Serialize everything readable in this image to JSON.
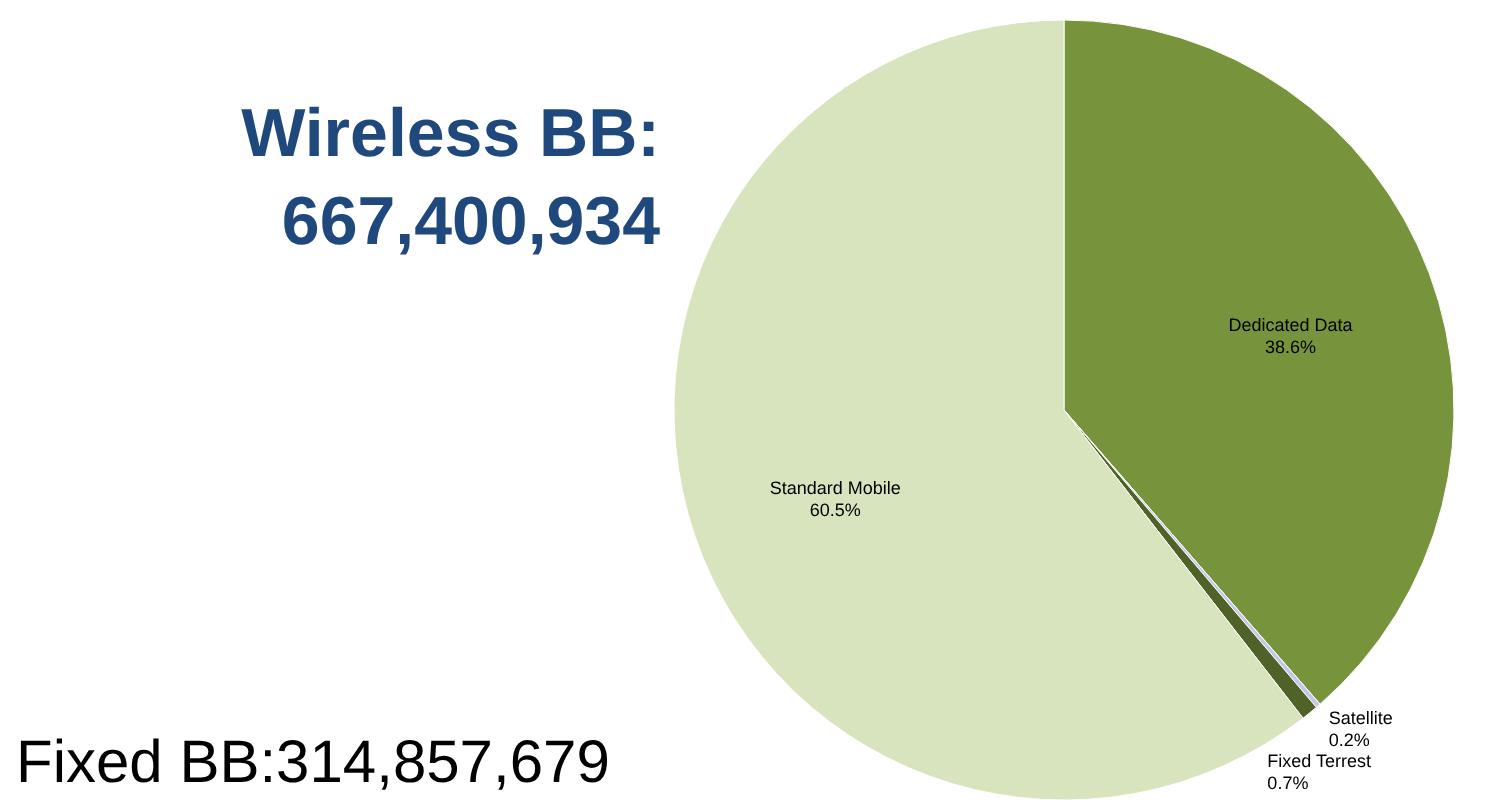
{
  "chart_data": {
    "type": "pie",
    "title": "Wireless BB:\n667,400,934",
    "categories": [
      "Dedicated Data",
      "Satellite",
      "Fixed Terrest",
      "Standard Mobile"
    ],
    "values": [
      38.6,
      0.2,
      0.7,
      60.5
    ],
    "colors": [
      "#77933c",
      "#c4c8e8",
      "#4f6228",
      "#d7e4bd"
    ],
    "value_labels": [
      "38.6%",
      "0.2%",
      "0.7%",
      "60.5%"
    ],
    "annotations": [
      "Fixed BB:314,857,679"
    ]
  }
}
